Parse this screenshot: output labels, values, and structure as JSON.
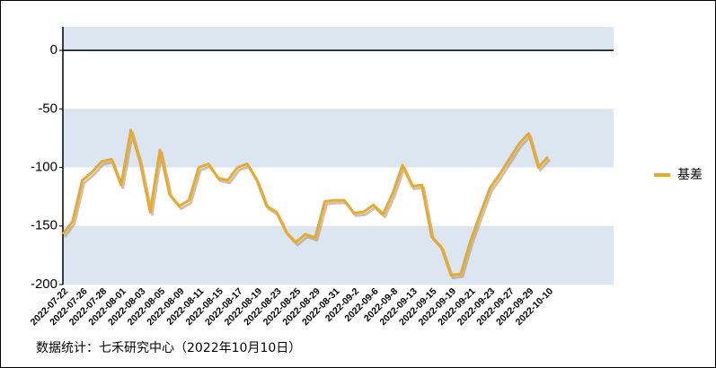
{
  "chart_data": {
    "type": "line",
    "categories": [
      "2022-07-22",
      null,
      "2022-07-26",
      null,
      "2022-07-28",
      null,
      "2022-08-01",
      null,
      "2022-08-03",
      null,
      "2022-08-05",
      null,
      "2022-08-09",
      null,
      "2022-08-11",
      null,
      "2022-08-15",
      null,
      "2022-08-17",
      null,
      "2022-08-19",
      null,
      "2022-08-23",
      null,
      "2022-08-25",
      null,
      "2022-08-29",
      null,
      "2022-08-31",
      null,
      "2022-09-2",
      null,
      "2022-09-6",
      null,
      "2022-09-8",
      null,
      "2022-09-13",
      null,
      "2022-09-15",
      null,
      "2022-09-19",
      null,
      "2022-09-21",
      null,
      "2022-09-23",
      null,
      "2022-09-27",
      null,
      "2022-09-29",
      null,
      "2022-10-10"
    ],
    "series": [
      {
        "name": "基差",
        "color": "#f0a81e",
        "values": [
          -157,
          -146,
          -111,
          -104,
          -95,
          -93,
          -115,
          -68,
          -97,
          -138,
          -85,
          -123,
          -133,
          -128,
          -100,
          -97,
          -109,
          -111,
          -100,
          -97,
          -111,
          -133,
          -138,
          -155,
          -164,
          -157,
          -160,
          -129,
          -128,
          -128,
          -139,
          -138,
          -132,
          -140,
          -122,
          -98,
          -116,
          -115,
          -159,
          -168,
          -192,
          -191,
          -163,
          -140,
          -118,
          -106,
          -93,
          -80,
          -71,
          -100,
          -91
        ]
      }
    ],
    "ylim": [
      -200,
      20
    ],
    "yticks": [
      0,
      -50,
      -100,
      -150,
      -200
    ],
    "bands": true,
    "legend": "right",
    "source": "数据统计：七禾研究中心（2022年10月10日）"
  }
}
